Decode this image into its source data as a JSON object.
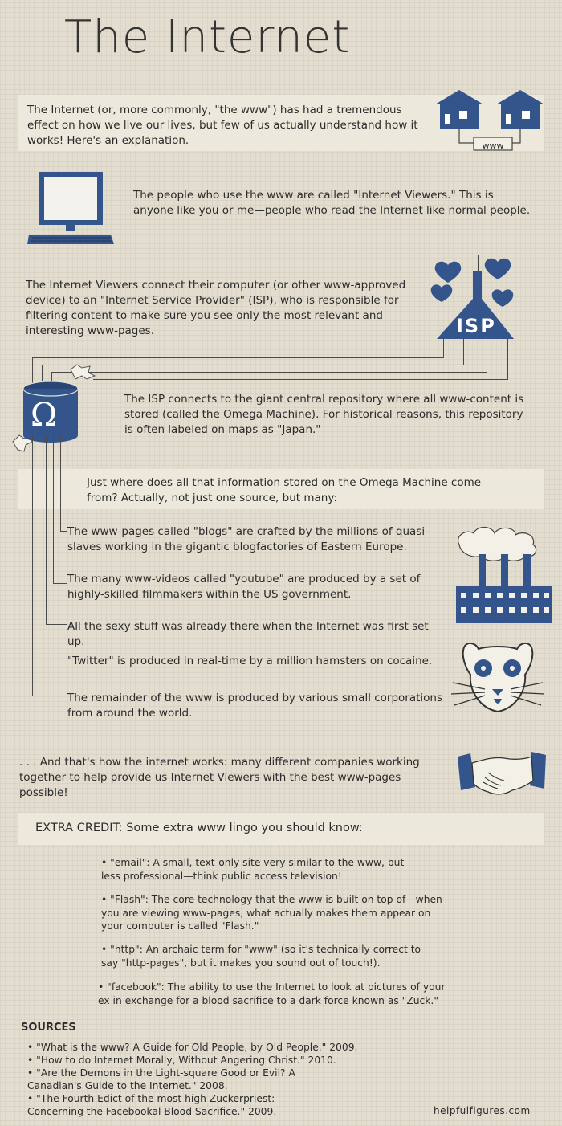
{
  "title": "The Internet",
  "intro": "The Internet (or, more commonly, \"the www\") has had a tremendous effect on how we live our lives, but few of us actually understand how it works! Here's an explanation.",
  "www_label": "www",
  "viewers": "The people who use the www are called \"Internet Viewers.\" This is anyone like you or me—people who read the Internet like normal people.",
  "isp_text": "The Internet Viewers connect their computer (or other www-approved device) to an \"Internet Service Provider\" (ISP), who is responsible for filtering content to make sure you see only the most relevant and interesting www-pages.",
  "isp_label": "ISP",
  "omega_symbol": "Ω",
  "omega_text": "The ISP connects to the giant central repository where all www-content is stored (called the Omega Machine). For historical reasons, this repository is often labeled on maps as \"Japan.\"",
  "source_question": "Just where does all that information stored on the Omega Machine come from? Actually, not just one source, but many:",
  "sources_flow": [
    "The www-pages called \"blogs\" are crafted by the millions of quasi-slaves working in the gigantic blogfactories of Eastern Europe.",
    "The many www-videos called \"youtube\" are produced by a set of highly-skilled filmmakers within the US government.",
    "All the sexy stuff was already there when the Internet was first set up.",
    "\"Twitter\" is produced in real-time by a million hamsters on cocaine.",
    "The remainder of the www is produced by various small corporations from around the world."
  ],
  "conclusion": ". . . And that's how the internet works: many different companies working together to help provide us Internet Viewers with the best www-pages possible!",
  "extra_credit": "EXTRA CREDIT: Some extra www lingo you should know:",
  "lingo": [
    "• \"email\": A small, text-only site very similar to the www, but less professional—think public access television!",
    "• \"Flash\": The core technology that the www is built on top of—when you are viewing www-pages, what actually makes them appear on your computer is called \"Flash.\"",
    "• \"http\": An archaic term for \"www\" (so it's technically correct to say \"http-pages\", but it makes you sound out of touch!).",
    "• \"facebook\": The ability to use the Internet to look at pictures of your ex in exchange for a blood sacrifice to a dark force known as \"Zuck.\""
  ],
  "sources_heading": "SOURCES",
  "sources": [
    "• \"What is the www? A Guide for Old People, by Old People.\" 2009.",
    "• \"How to do Internet Morally, Without Angering Christ.\" 2010.",
    "• \"Are the Demons in the Light-square Good or Evil? A Canadian's Guide to the Internet.\" 2008.",
    "• \"The Fourth Edict of the most high Zuckerpriest: Concerning the Facebookal Blood Sacrifice.\" 2009."
  ],
  "credit_site": "helpfulfigures.com",
  "colors": {
    "background": "#e2ddcf",
    "band": "#ece8dc",
    "accent_blue": "#34558b",
    "text": "#2b2b2b"
  },
  "icons": [
    "house-icon",
    "computer-icon",
    "heart-icon",
    "isp-funnel-icon",
    "omega-machine-icon",
    "japan-map-icon",
    "factory-icon",
    "hamster-icon",
    "handshake-icon"
  ]
}
